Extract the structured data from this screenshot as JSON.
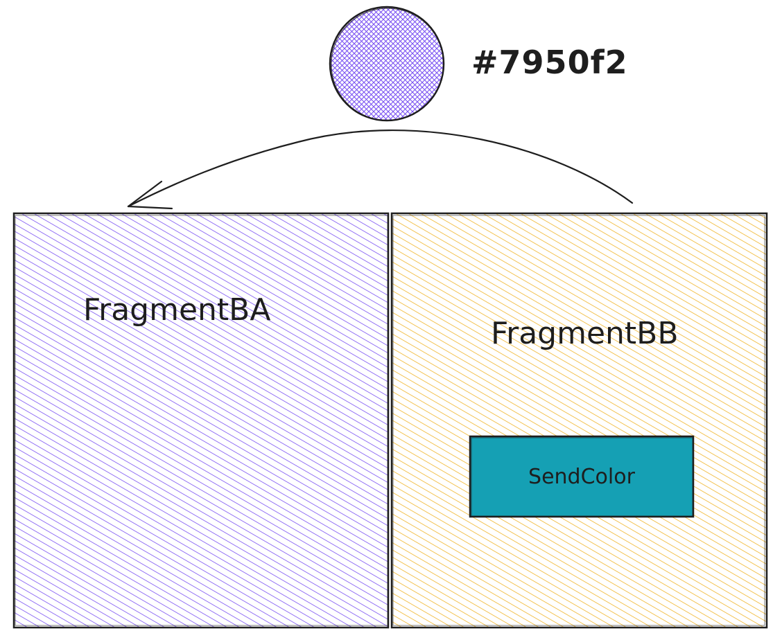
{
  "color_swatch": {
    "hex_label": "#7950f2",
    "fill": "#7950f2"
  },
  "fragment_a": {
    "label": "FragmentBA",
    "hatch_color": "#7950f2"
  },
  "fragment_b": {
    "label": "FragmentBB",
    "hatch_color": "#f0b428"
  },
  "send_button": {
    "label": "SendColor",
    "fill": "#15a0b4"
  },
  "stroke_color": "#1e1e1e"
}
